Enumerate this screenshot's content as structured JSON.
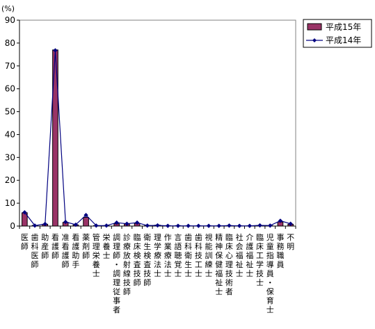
{
  "chart_data": {
    "type": "bar",
    "y_unit": "(%)",
    "ylim": [
      0,
      90
    ],
    "y_ticks": [
      0,
      10,
      20,
      30,
      40,
      50,
      60,
      70,
      80,
      90
    ],
    "grid": false,
    "legend_position": "top-right",
    "categories": [
      "医師",
      "歯科医師",
      "助産師",
      "看護師",
      "准看護師",
      "看護助手",
      "薬剤師",
      "管理栄養士",
      "栄養士",
      "調理師・調理従事者",
      "診療放射線技師",
      "臨床検査技師",
      "衛生検査技師",
      "理学療法士",
      "作業療法士",
      "言語聴覚士",
      "歯科衛生士",
      "歯科技工士",
      "視能訓練士",
      "精神保健福祉士",
      "臨床心理技術者",
      "社会福祉士",
      "介護福祉士",
      "臨床工学技士",
      "児童指導員・保育士",
      "事務職員",
      "不明"
    ],
    "series": [
      {
        "name": "平成15年",
        "kind": "bar",
        "color": "#993366",
        "values": [
          5.8,
          0.3,
          0.8,
          77.0,
          1.6,
          0.5,
          3.8,
          0.2,
          0.2,
          1.0,
          1.0,
          1.2,
          0.3,
          0.4,
          0.2,
          0.2,
          0.1,
          0.1,
          0.1,
          0.1,
          0.2,
          0.1,
          0.1,
          0.3,
          0.2,
          1.8,
          0.8
        ]
      },
      {
        "name": "平成14年",
        "kind": "line",
        "color": "#000080",
        "values": [
          6.0,
          0.2,
          0.9,
          76.8,
          1.8,
          0.6,
          4.8,
          0.2,
          0.2,
          1.5,
          1.0,
          1.5,
          0.2,
          0.3,
          0.1,
          0.1,
          0.1,
          0.1,
          0.1,
          0.1,
          0.2,
          0.1,
          0.1,
          0.3,
          0.2,
          2.3,
          1.0
        ]
      }
    ]
  }
}
